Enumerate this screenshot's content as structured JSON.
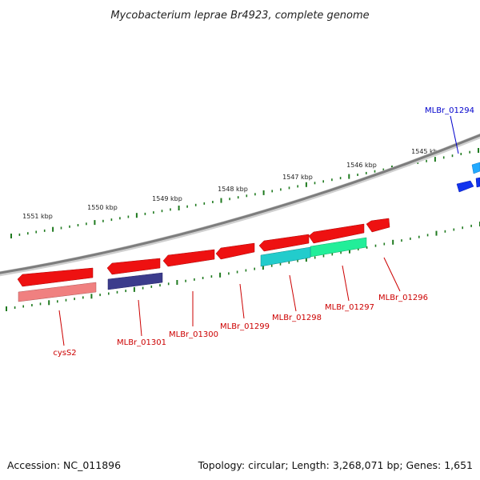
{
  "title": "Mycobacterium leprae Br4923, complete genome",
  "footer": {
    "accession": "Accession: NC_011896",
    "summary": "Topology: circular; Length: 3,268,071 bp; Genes: 1,651"
  },
  "colors": {
    "backbone": "#8a8a8a",
    "tick": "#1f7a1f",
    "forward_label": "#0000cc",
    "reverse_label": "#cc0000",
    "gene_red": "#ee1111",
    "gene_pink": "#f08080",
    "gene_navy": "#3c3c8c",
    "gene_cyan": "#22cccc",
    "gene_green": "#22ee99",
    "gene_blue": "#1133ee",
    "gene_lightblue": "#22aaff"
  },
  "ruler": {
    "unit": "kbp",
    "labels": [
      "1545 kbp",
      "1546 kbp",
      "1547 kbp",
      "1548 kbp",
      "1549 kbp",
      "1550 kbp",
      "1551 kbp"
    ]
  },
  "genes": [
    {
      "name": "MLBr_01294",
      "strand": "forward"
    },
    {
      "name": "MLBr_01296",
      "strand": "reverse"
    },
    {
      "name": "MLBr_01297",
      "strand": "reverse"
    },
    {
      "name": "MLBr_01298",
      "strand": "reverse"
    },
    {
      "name": "MLBr_01299",
      "strand": "reverse"
    },
    {
      "name": "MLBr_01300",
      "strand": "reverse"
    },
    {
      "name": "MLBr_01301",
      "strand": "reverse"
    },
    {
      "name": "cysS2",
      "strand": "reverse"
    }
  ]
}
